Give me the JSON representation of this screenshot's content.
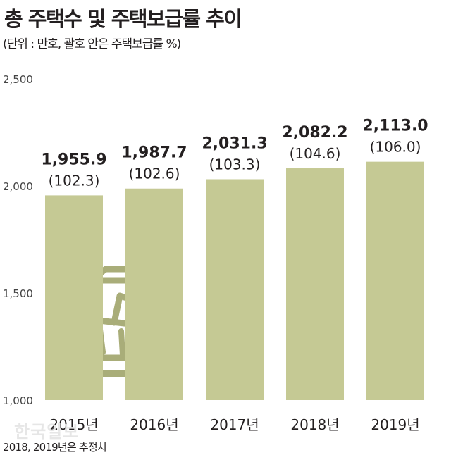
{
  "header": {
    "title": "총 주택수 및 주택보급률 추이",
    "subtitle": "(단위 : 만호, 괄호 안은 주택보급률 %)"
  },
  "footer": {
    "note": "2018, 2019년은 추정치",
    "credit": "한국일보"
  },
  "colors": {
    "bar": "#c5c994",
    "icon": "#a9ad79"
  },
  "chart_data": {
    "type": "bar",
    "title": "총 주택수 및 주택보급률 추이",
    "subtitle": "(단위 : 만호, 괄호 안은 주택보급률 %)",
    "categories": [
      "2015년",
      "2016년",
      "2017년",
      "2018년",
      "2019년"
    ],
    "series": [
      {
        "values": [
          1955.9,
          1987.7,
          2031.3,
          2082.2,
          2113.0
        ]
      }
    ],
    "value_labels": [
      "1,955.9",
      "1,987.7",
      "2,031.3",
      "2,082.2",
      "2,113.0"
    ],
    "ratio_labels": [
      "(102.3)",
      "(102.6)",
      "(103.3)",
      "(104.6)",
      "(106.0)"
    ],
    "housing_supply_ratio": [
      102.3,
      102.6,
      103.3,
      104.6,
      106.0
    ],
    "yticks": [
      1000,
      1500,
      2000,
      2500
    ],
    "ytick_labels": [
      "1,000",
      "1,500",
      "2,000",
      "2,500"
    ],
    "ylim": [
      1000,
      2500
    ],
    "grid": false,
    "legend": "none"
  }
}
